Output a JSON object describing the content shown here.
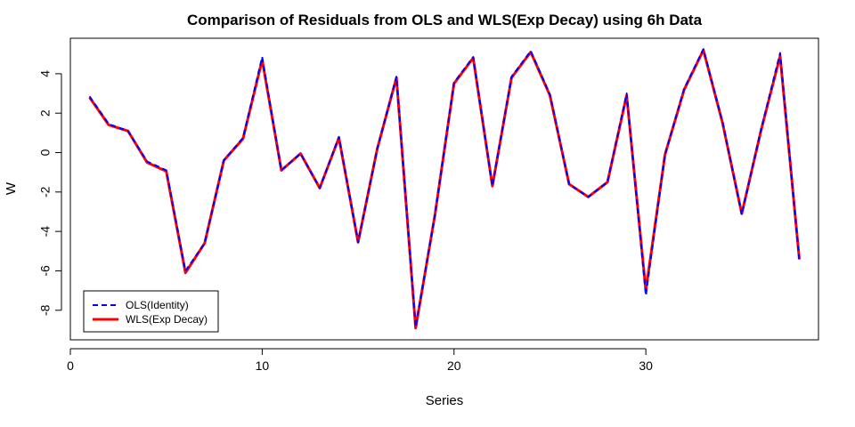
{
  "chart_data": {
    "type": "line",
    "title": "Comparison of Residuals from OLS and WLS(Exp Decay) using 6h Data",
    "xlabel": "Series",
    "ylabel": "W",
    "xlim": [
      0,
      39
    ],
    "ylim": [
      -9.5,
      5.8
    ],
    "x_ticks": [
      0,
      10,
      20,
      30
    ],
    "x_tick_labels": [
      "0",
      "10",
      "20",
      "30"
    ],
    "y_ticks": [
      -8,
      -6,
      -4,
      -2,
      0,
      2,
      4
    ],
    "y_tick_labels": [
      "-8",
      "-6",
      "-4",
      "-2",
      "0",
      "2",
      "4"
    ],
    "legend_position": "bottom-left",
    "x": [
      1,
      2,
      3,
      4,
      5,
      6,
      7,
      8,
      9,
      10,
      11,
      12,
      13,
      14,
      15,
      16,
      17,
      18,
      19,
      20,
      21,
      22,
      23,
      24,
      25,
      26,
      27,
      28,
      29,
      30,
      31,
      32,
      33,
      34,
      35,
      36,
      37,
      38
    ],
    "series": [
      {
        "name": "WLS(Exp Decay)",
        "color": "#ff0000",
        "line_style": "solid",
        "values": [
          2.8,
          1.4,
          1.1,
          -0.5,
          -0.95,
          -6.1,
          -4.6,
          -0.4,
          0.7,
          4.7,
          -0.9,
          -0.05,
          -1.8,
          0.75,
          -4.55,
          0.2,
          3.8,
          -8.9,
          -3.2,
          3.5,
          4.8,
          -1.7,
          3.8,
          5.1,
          2.9,
          -1.6,
          -2.25,
          -1.5,
          2.9,
          -7.0,
          -0.1,
          3.2,
          5.2,
          1.5,
          -3.1,
          1.1,
          4.9,
          -5.4
        ]
      },
      {
        "name": "OLS(Identity)",
        "color": "#0000ff",
        "line_style": "dashed",
        "values": [
          2.85,
          1.45,
          1.1,
          -0.45,
          -0.9,
          -6.0,
          -4.6,
          -0.4,
          0.75,
          4.85,
          -0.9,
          -0.05,
          -1.8,
          0.8,
          -4.55,
          0.2,
          3.85,
          -8.85,
          -3.2,
          3.55,
          4.85,
          -1.7,
          3.85,
          5.15,
          2.95,
          -1.6,
          -2.25,
          -1.5,
          3.0,
          -7.25,
          -0.1,
          3.25,
          5.25,
          1.55,
          -3.15,
          1.15,
          5.05,
          -5.45
        ]
      }
    ],
    "legend": [
      {
        "label": "OLS(Identity)",
        "color": "#0000ff",
        "line_style": "dashed"
      },
      {
        "label": "WLS(Exp Decay)",
        "color": "#ff0000",
        "line_style": "solid"
      }
    ]
  }
}
